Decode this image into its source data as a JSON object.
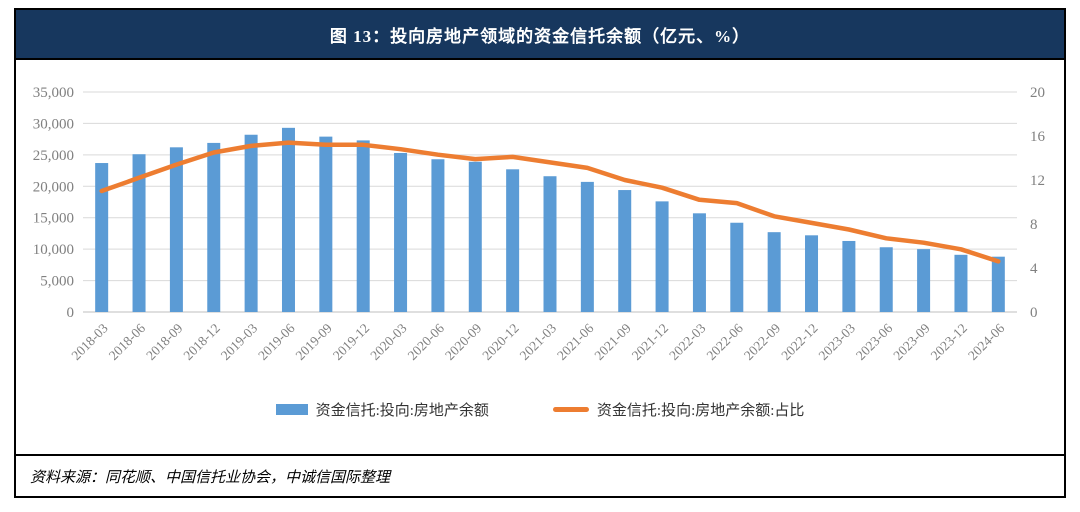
{
  "figure": {
    "title": "图 13：投向房地产领域的资金信托余额（亿元、%）",
    "source_note": "资料来源：同花顺、中国信托业协会，中诚信国际整理"
  },
  "colors": {
    "bar": "#5B9BD5",
    "line": "#ED7D31",
    "title_bar_bg": "#17375E",
    "title_text": "#FFFFFF",
    "axis_text": "#808080",
    "gridline": "#D9D9D9",
    "baseline": "#BFBFBF",
    "border": "#000000"
  },
  "chart_data": {
    "type": "bar",
    "subtype": "combo-bar-line-dual-axis",
    "title": "图 13：投向房地产领域的资金信托余额（亿元、%）",
    "categories": [
      "2018-03",
      "2018-06",
      "2018-09",
      "2018-12",
      "2019-03",
      "2019-06",
      "2019-09",
      "2019-12",
      "2020-03",
      "2020-06",
      "2020-09",
      "2020-12",
      "2021-03",
      "2021-06",
      "2021-09",
      "2021-12",
      "2022-03",
      "2022-06",
      "2022-09",
      "2022-12",
      "2023-03",
      "2023-06",
      "2023-09",
      "2023-12",
      "2024-06"
    ],
    "series": [
      {
        "name": "资金信托:投向:房地产余额",
        "type": "bar",
        "axis": "left",
        "values": [
          23700,
          25100,
          26200,
          26900,
          28200,
          29300,
          27900,
          27300,
          25300,
          24300,
          23900,
          22700,
          21600,
          20700,
          19400,
          17600,
          15700,
          14200,
          12700,
          12200,
          11300,
          10300,
          10000,
          9100,
          8800
        ]
      },
      {
        "name": "资金信托:投向:房地产余额:占比",
        "type": "line",
        "axis": "right",
        "values": [
          11.0,
          12.2,
          13.4,
          14.5,
          15.1,
          15.4,
          15.2,
          15.2,
          14.8,
          14.3,
          13.9,
          14.1,
          13.6,
          13.1,
          12.0,
          11.3,
          10.2,
          9.9,
          8.7,
          8.1,
          7.5,
          6.7,
          6.3,
          5.7,
          4.6
        ]
      }
    ],
    "left_axis": {
      "min": 0,
      "max": 35000,
      "tick_step": 5000
    },
    "right_axis": {
      "min": 0,
      "max": 20,
      "tick_step": 4
    },
    "grid": true,
    "legend_position": "bottom",
    "x_label_rotation_deg": 45
  }
}
